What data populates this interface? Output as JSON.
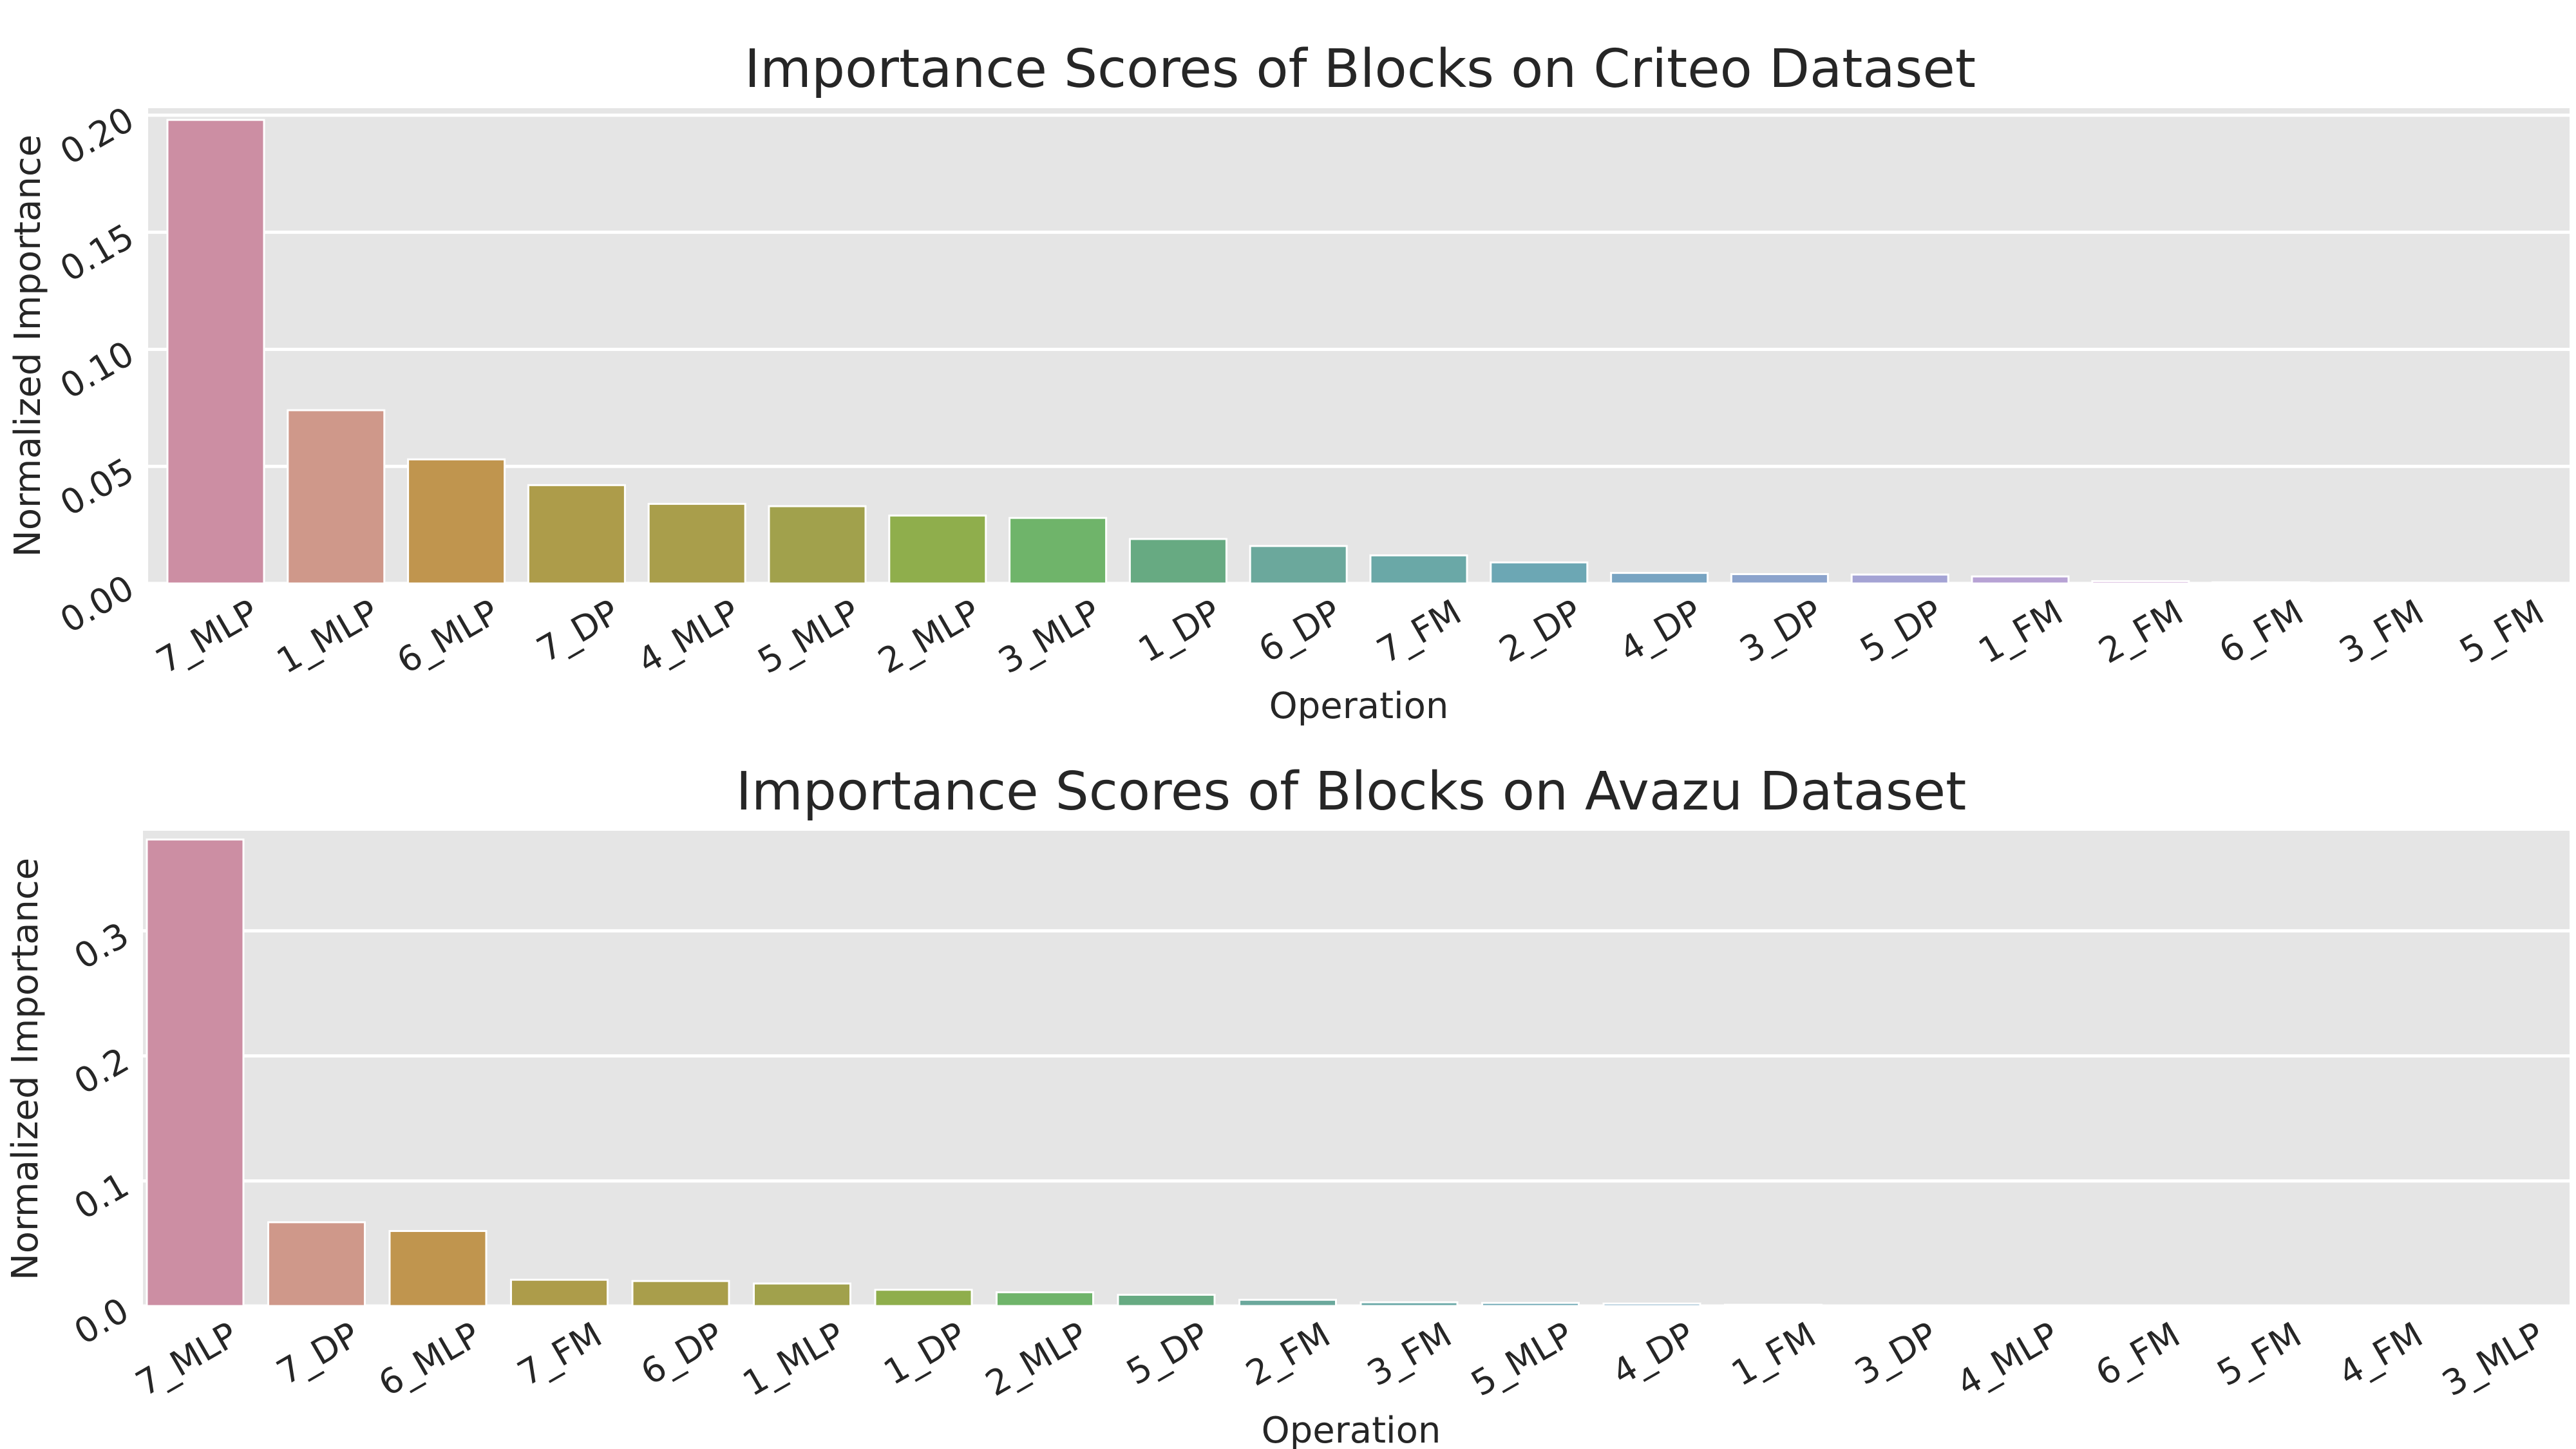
{
  "chart_data": [
    {
      "type": "bar",
      "title": "Importance Scores of Blocks on Criteo Dataset",
      "xlabel": "Operation",
      "ylabel": "Normalized Importance",
      "ylim": [
        0,
        0.203
      ],
      "yticks": [
        0.0,
        0.05,
        0.1,
        0.15,
        0.2
      ],
      "ytick_labels": [
        "0.00",
        "0.05",
        "0.10",
        "0.15",
        "0.20"
      ],
      "grid": true,
      "categories": [
        "7_MLP",
        "1_MLP",
        "6_MLP",
        "7_DP",
        "4_MLP",
        "5_MLP",
        "2_MLP",
        "3_MLP",
        "1_DP",
        "6_DP",
        "7_FM",
        "2_DP",
        "4_DP",
        "3_DP",
        "5_DP",
        "1_FM",
        "2_FM",
        "6_FM",
        "3_FM",
        "5_FM"
      ],
      "values": [
        0.198,
        0.074,
        0.053,
        0.042,
        0.034,
        0.033,
        0.029,
        0.028,
        0.019,
        0.016,
        0.012,
        0.009,
        0.0045,
        0.004,
        0.0038,
        0.003,
        0.001,
        0.0005,
        0.0003,
        0.0002
      ],
      "colors": [
        "#cc8ea3",
        "#cf988a",
        "#c0954e",
        "#ad9c4a",
        "#a99e4b",
        "#a1a14c",
        "#8fae4c",
        "#6fb46a",
        "#67aa82",
        "#6ba89c",
        "#6aa8a7",
        "#6ca7b4",
        "#78a4c2",
        "#8ba3cc",
        "#a4a3d4",
        "#b7a2d4",
        "#c698cf",
        "#c795c5",
        "#c891ba",
        "#c98fb0"
      ]
    },
    {
      "type": "bar",
      "title": "Importance Scores of Blocks on Avazu Dataset",
      "xlabel": "Operation",
      "ylabel": "Normalized Importance",
      "ylim": [
        0,
        0.38
      ],
      "yticks": [
        0.0,
        0.1,
        0.2,
        0.3
      ],
      "ytick_labels": [
        "0.0",
        "0.1",
        "0.2",
        "0.3"
      ],
      "grid": true,
      "categories": [
        "7_MLP",
        "7_DP",
        "6_MLP",
        "7_FM",
        "6_DP",
        "1_MLP",
        "1_DP",
        "2_MLP",
        "5_DP",
        "2_FM",
        "3_FM",
        "5_MLP",
        "4_DP",
        "1_FM",
        "3_DP",
        "4_MLP",
        "6_FM",
        "5_FM",
        "4_FM",
        "3_MLP"
      ],
      "values": [
        0.373,
        0.067,
        0.06,
        0.021,
        0.02,
        0.018,
        0.013,
        0.011,
        0.009,
        0.005,
        0.003,
        0.0025,
        0.002,
        0.001,
        0.0005,
        0.0004,
        0.0003,
        0.0002,
        0.0002,
        0.0001
      ],
      "colors": [
        "#cc8ea3",
        "#cf988a",
        "#c0954e",
        "#ad9c4a",
        "#a99e4b",
        "#a1a14c",
        "#8fae4c",
        "#6fb46a",
        "#67aa82",
        "#6ba89c",
        "#6aa8a7",
        "#6ca7b4",
        "#78a4c2",
        "#8ba3cc",
        "#a4a3d4",
        "#b7a2d4",
        "#c698cf",
        "#c795c5",
        "#c891ba",
        "#c98fb0"
      ]
    }
  ]
}
